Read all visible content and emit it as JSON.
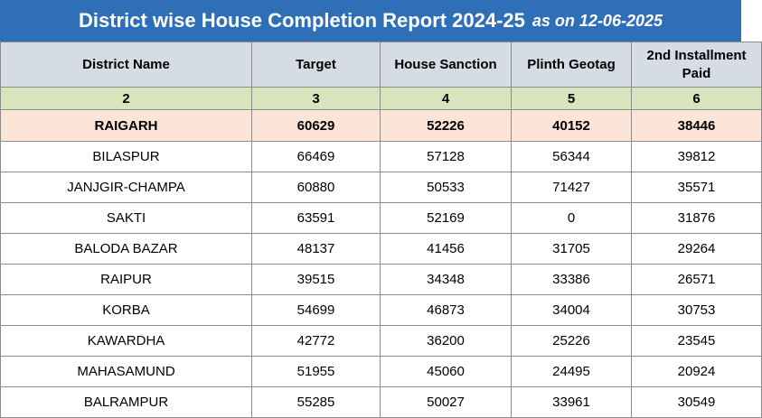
{
  "title": {
    "main": "District wise House Completion Report 2024-25",
    "date": "as on 12-06-2025"
  },
  "headers": [
    "District Name",
    "Target",
    "House Sanction",
    "Plinth Geotag",
    "2nd Installment Paid"
  ],
  "column_numbers": [
    "2",
    "3",
    "4",
    "5",
    "6"
  ],
  "highlight_row": [
    "RAIGARH",
    "60629",
    "52226",
    "40152",
    "38446"
  ],
  "rows": [
    [
      "BILASPUR",
      "66469",
      "57128",
      "56344",
      "39812"
    ],
    [
      "JANJGIR-CHAMPA",
      "60880",
      "50533",
      "71427",
      "35571"
    ],
    [
      "SAKTI",
      "63591",
      "52169",
      "0",
      "31876"
    ],
    [
      "BALODA BAZAR",
      "48137",
      "41456",
      "31705",
      "29264"
    ],
    [
      "RAIPUR",
      "39515",
      "34348",
      "33386",
      "26571"
    ],
    [
      "KORBA",
      "54699",
      "46873",
      "34004",
      "30753"
    ],
    [
      "KAWARDHA",
      "42772",
      "36200",
      "25226",
      "23545"
    ],
    [
      "MAHASAMUND",
      "51955",
      "45060",
      "24495",
      "20924"
    ],
    [
      "BALRAMPUR",
      "55285",
      "50027",
      "33961",
      "30549"
    ]
  ],
  "colors": {
    "title_bg": "#2f6fb7",
    "header_bg": "#d6dce4",
    "number_row_bg": "#d8e4bc",
    "highlight_bg": "#fce4d6"
  }
}
